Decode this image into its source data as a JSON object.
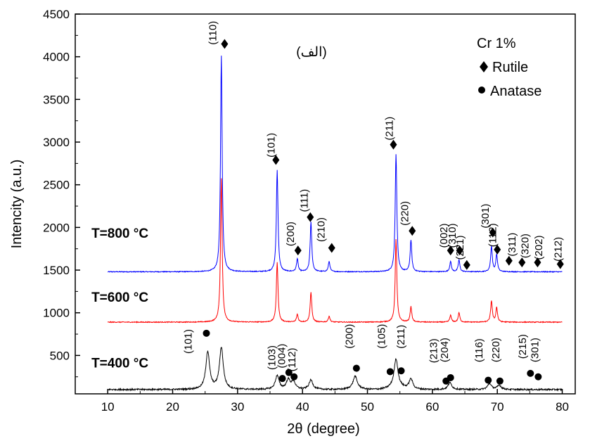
{
  "chart_data": {
    "type": "line",
    "sub_label": "(الف)",
    "xlabel": "2θ (degree)",
    "ylabel": "Intencity (a.u.)",
    "xlim": [
      5,
      82
    ],
    "ylim": [
      50,
      4500
    ],
    "x_ticks": [
      10,
      20,
      30,
      40,
      50,
      60,
      70,
      80
    ],
    "y_ticks": [
      500,
      1000,
      1500,
      2000,
      2500,
      3000,
      3500,
      4000,
      4500
    ],
    "legend": {
      "position": "top-right",
      "title": "Cr 1%",
      "entries": [
        {
          "symbol": "diamond",
          "label": "Rutile"
        },
        {
          "symbol": "circle",
          "label": "Anatase"
        }
      ]
    },
    "series": [
      {
        "name": "T=800 °C",
        "color": "#0000ff",
        "baseline": 1480,
        "peaks": [
          {
            "x": 27.5,
            "y": 4010
          },
          {
            "x": 36.1,
            "y": 2670
          },
          {
            "x": 39.2,
            "y": 1630
          },
          {
            "x": 41.3,
            "y": 2060
          },
          {
            "x": 44.1,
            "y": 1600
          },
          {
            "x": 54.4,
            "y": 2860
          },
          {
            "x": 56.7,
            "y": 1850
          },
          {
            "x": 62.8,
            "y": 1600
          },
          {
            "x": 64.1,
            "y": 1620
          },
          {
            "x": 69.1,
            "y": 1780
          },
          {
            "x": 69.9,
            "y": 1680
          }
        ]
      },
      {
        "name": "T=600 °C",
        "color": "#ff0000",
        "baseline": 890,
        "peaks": [
          {
            "x": 27.5,
            "y": 2580
          },
          {
            "x": 36.1,
            "y": 1590
          },
          {
            "x": 39.2,
            "y": 980
          },
          {
            "x": 41.3,
            "y": 1240
          },
          {
            "x": 44.1,
            "y": 960
          },
          {
            "x": 54.4,
            "y": 1860
          },
          {
            "x": 56.7,
            "y": 1070
          },
          {
            "x": 62.8,
            "y": 970
          },
          {
            "x": 64.1,
            "y": 1000
          },
          {
            "x": 69.1,
            "y": 1140
          },
          {
            "x": 69.9,
            "y": 1060
          }
        ]
      },
      {
        "name": "T=400 °C",
        "color": "#000000",
        "baseline": 100,
        "peaks": [
          {
            "x": 25.4,
            "y": 540
          },
          {
            "x": 27.5,
            "y": 590
          },
          {
            "x": 36.1,
            "y": 260
          },
          {
            "x": 37.8,
            "y": 210
          },
          {
            "x": 38.6,
            "y": 190
          },
          {
            "x": 41.3,
            "y": 210
          },
          {
            "x": 48.1,
            "y": 240
          },
          {
            "x": 54.4,
            "y": 430
          },
          {
            "x": 56.7,
            "y": 220
          },
          {
            "x": 62.7,
            "y": 180
          },
          {
            "x": 68.8,
            "y": 170
          },
          {
            "x": 70.3,
            "y": 150
          }
        ]
      }
    ],
    "temperature_labels": [
      {
        "text": "T=800 °C",
        "x": 7.5,
        "y": 1880
      },
      {
        "text": "T=600 °C",
        "x": 7.5,
        "y": 1130
      },
      {
        "text": "T=400 °C",
        "x": 7.5,
        "y": 360
      }
    ],
    "annotations": [
      {
        "text": "(110)",
        "x": 26.7,
        "y": 4140,
        "marker": "diamond",
        "mx": 28.0,
        "my": 4150
      },
      {
        "text": "(101)",
        "x": 35.7,
        "y": 2820,
        "marker": "diamond",
        "mx": 35.9,
        "my": 2790
      },
      {
        "text": "(200)",
        "x": 38.7,
        "y": 1780,
        "marker": "diamond",
        "mx": 39.3,
        "my": 1730
      },
      {
        "text": "(111)",
        "x": 40.8,
        "y": 2180,
        "marker": "diamond",
        "mx": 41.2,
        "my": 2120
      },
      {
        "text": "(210)",
        "x": 43.4,
        "y": 1830,
        "marker": "diamond",
        "mx": 44.5,
        "my": 1760
      },
      {
        "text": "(211)",
        "x": 53.9,
        "y": 3020,
        "marker": "diamond",
        "mx": 54.0,
        "my": 2970
      },
      {
        "text": "(220)",
        "x": 56.3,
        "y": 2020,
        "marker": "diamond",
        "mx": 56.9,
        "my": 1960
      },
      {
        "text": "(002)",
        "x": 62.3,
        "y": 1760,
        "marker": "diamond",
        "mx": 62.8,
        "my": 1730
      },
      {
        "text": "(310)",
        "x": 63.6,
        "y": 1760,
        "marker": "diamond",
        "mx": 64.2,
        "my": 1730
      },
      {
        "text": "(221)",
        "x": 64.8,
        "y": 1620,
        "marker": "diamond",
        "mx": 65.3,
        "my": 1560
      },
      {
        "text": "(301)",
        "x": 68.7,
        "y": 1990,
        "marker": "diamond",
        "mx": 69.3,
        "my": 1940
      },
      {
        "text": "(112)",
        "x": 69.8,
        "y": 1770,
        "marker": "diamond",
        "mx": 70.0,
        "my": 1740
      },
      {
        "text": "(311)",
        "x": 72.8,
        "y": 1660,
        "marker": "diamond",
        "mx": 71.8,
        "my": 1610
      },
      {
        "text": "(320)",
        "x": 74.8,
        "y": 1640,
        "marker": "diamond",
        "mx": 73.8,
        "my": 1590
      },
      {
        "text": "(202)",
        "x": 76.9,
        "y": 1620,
        "marker": "diamond",
        "mx": 76.2,
        "my": 1590
      },
      {
        "text": "(212)",
        "x": 79.9,
        "y": 1600,
        "marker": "diamond",
        "mx": 79.7,
        "my": 1570
      },
      {
        "text": "(101)",
        "x": 22.9,
        "y": 520,
        "marker": "circle",
        "mx": 25.2,
        "my": 760
      },
      {
        "text": "(103)",
        "x": 35.8,
        "y": 330,
        "marker": "circle",
        "mx": 36.9,
        "my": 230
      },
      {
        "text": "(004)",
        "x": 37.3,
        "y": 350,
        "marker": "circle",
        "mx": 37.9,
        "my": 300
      },
      {
        "text": "(112)",
        "x": 38.9,
        "y": 310,
        "marker": "circle",
        "mx": 38.7,
        "my": 250
      },
      {
        "text": "(200)",
        "x": 47.7,
        "y": 580,
        "marker": "circle",
        "mx": 48.3,
        "my": 350
      },
      {
        "text": "(105)",
        "x": 52.7,
        "y": 580,
        "marker": "circle",
        "mx": 53.5,
        "my": 310
      },
      {
        "text": "(211)",
        "x": 55.7,
        "y": 580,
        "marker": "circle",
        "mx": 55.2,
        "my": 320
      },
      {
        "text": "(213)",
        "x": 60.7,
        "y": 410,
        "marker": "circle",
        "mx": 62.1,
        "my": 200
      },
      {
        "text": "(204)",
        "x": 62.4,
        "y": 420,
        "marker": "circle",
        "mx": 62.8,
        "my": 240
      },
      {
        "text": "(116)",
        "x": 67.7,
        "y": 420,
        "marker": "circle",
        "mx": 68.6,
        "my": 210
      },
      {
        "text": "(220)",
        "x": 70.3,
        "y": 420,
        "marker": "circle",
        "mx": 70.4,
        "my": 200
      },
      {
        "text": "(215)",
        "x": 74.4,
        "y": 460,
        "marker": "circle",
        "mx": 75.1,
        "my": 290
      },
      {
        "text": "(301)",
        "x": 76.3,
        "y": 420,
        "marker": "circle",
        "mx": 76.3,
        "my": 250
      }
    ]
  }
}
